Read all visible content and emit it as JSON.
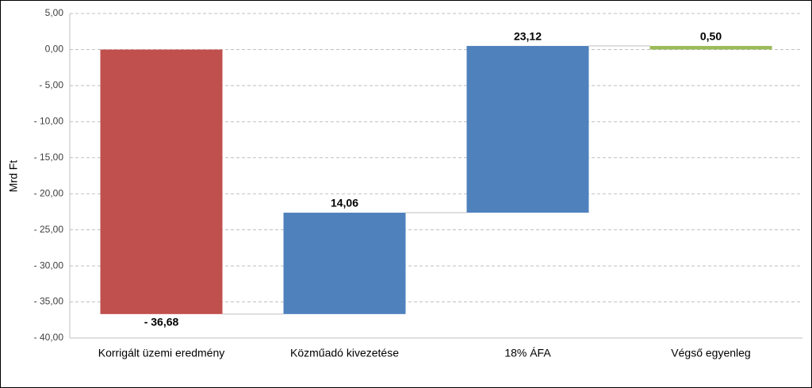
{
  "chart_data": {
    "type": "waterfall",
    "y_label": "Mrd Ft",
    "categories": [
      "Korrigált üzemi eredmény",
      "Közműadó kivezetése",
      "18% ÁFA",
      "Végső egyenleg"
    ],
    "values": [
      -36.68,
      14.06,
      23.12,
      0.5
    ],
    "value_labels": [
      "- 36,68",
      "14,06",
      "23,12",
      "0,50"
    ],
    "colors": [
      "#c0504d",
      "#4f81bd",
      "#4f81bd",
      "#9bbb59"
    ],
    "last_is_total": true,
    "ylim": [
      -40,
      5
    ],
    "yticks": [
      {
        "value": 5,
        "label": "5,00"
      },
      {
        "value": 0,
        "label": "0,00"
      },
      {
        "value": -5,
        "label": "- 5,00"
      },
      {
        "value": -10,
        "label": "- 10,00"
      },
      {
        "value": -15,
        "label": "- 15,00"
      },
      {
        "value": -20,
        "label": "- 20,00"
      },
      {
        "value": -25,
        "label": "- 25,00"
      },
      {
        "value": -30,
        "label": "- 30,00"
      },
      {
        "value": -35,
        "label": "- 35,00"
      },
      {
        "value": -40,
        "label": "- 40,00"
      }
    ],
    "grid": true
  }
}
